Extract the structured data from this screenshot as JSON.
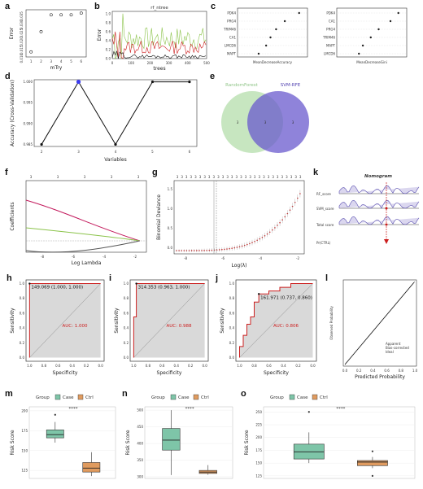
{
  "labels": {
    "a": "a",
    "b": "b",
    "c": "c",
    "d": "d",
    "e": "e",
    "f": "f",
    "g": "g",
    "k": "k",
    "h": "h",
    "i": "i",
    "j": "j",
    "l": "l",
    "m": "m",
    "n": "n",
    "o": "o"
  },
  "colors": {
    "red": "#cc1f1f",
    "blue": "#3b3bf0",
    "green": "#8bc34a",
    "venn_green": "#b9e0b0",
    "venn_blue": "#6a5acd",
    "case": "#7ec5a8",
    "ctrl": "#e09b5f",
    "roc_fill": "#d9d9d9"
  },
  "chart_data": [
    {
      "id": "a",
      "type": "scatter",
      "xlabel": "mTry",
      "ylabel": "Error",
      "x": [
        1,
        2,
        3,
        4,
        5,
        6
      ],
      "y": [
        0.012,
        0.024,
        0.034,
        0.034,
        0.034,
        0.035
      ],
      "xticks": [
        "1",
        "2",
        "3",
        "4",
        "5",
        "6"
      ],
      "yticks": [
        "0.010",
        "0.015",
        "0.020",
        "0.025",
        "0.030",
        "0.035"
      ]
    },
    {
      "id": "b",
      "type": "line",
      "title": "rf_ntree",
      "xlabel": "trees",
      "ylabel": "Error",
      "xticks": [
        "0",
        "100",
        "200",
        "300",
        "400",
        "500"
      ],
      "yticks": [
        "0.0",
        "0.2",
        "0.4",
        "0.6",
        "0.8",
        "1.0"
      ]
    },
    {
      "id": "c",
      "type": "scatter",
      "panels": [
        {
          "xlabel": "MeanDecreaseAccuracy",
          "categories": [
            "PDK4",
            "PRG4",
            "TRIM46",
            "CA1",
            "LMCD6",
            "MAPT"
          ],
          "values": [
            9.5,
            7.2,
            5.8,
            4.9,
            4.2,
            3.0
          ]
        },
        {
          "xlabel": "MeanDecreaseGini",
          "categories": [
            "PDK4",
            "CA1",
            "PRG4",
            "TRIM46",
            "MAPT",
            "LMCD6"
          ],
          "values": [
            1.5,
            1.3,
            1.0,
            0.8,
            0.6,
            0.5
          ]
        }
      ]
    },
    {
      "id": "d",
      "type": "line",
      "xlabel": "Variables",
      "ylabel": "Accuracy (Cross-Validation)",
      "x": [
        2,
        3,
        4,
        5,
        6
      ],
      "y": [
        0.985,
        1.0,
        0.985,
        1.0,
        1.0
      ],
      "xticks": [
        "2",
        "3",
        "4",
        "5",
        "6"
      ],
      "yticks": [
        "0.985",
        "0.990",
        "0.995",
        "1.000"
      ]
    },
    {
      "id": "e",
      "type": "venn",
      "sets": [
        "RandomForest",
        "SVM-RFE"
      ],
      "counts": [
        "3",
        "3",
        "3"
      ]
    },
    {
      "id": "f",
      "type": "line",
      "xlabel": "Log Lambda",
      "ylabel": "Coefficients",
      "top_ticks": [
        "3",
        "3",
        "3",
        "3",
        "3"
      ],
      "xticks": [
        "-8",
        "-6",
        "-4",
        "-2"
      ]
    },
    {
      "id": "g",
      "type": "scatter",
      "xlabel": "Log(λ)",
      "ylabel": "Binomial Deviance",
      "xticks": [
        "-8",
        "-6",
        "-4",
        "-2"
      ],
      "yticks": [
        "0.0",
        "0.5",
        "1.0",
        "1.5"
      ]
    },
    {
      "id": "k",
      "type": "other",
      "title": "Nomogram",
      "rows": [
        "RF_score",
        "SVM_score",
        "Total score",
        "Pr(CTRL)"
      ]
    },
    {
      "id": "h",
      "type": "line",
      "xlabel": "Specificity",
      "ylabel": "Sensitivity",
      "threshold": "149.069 (1.000, 1.000)",
      "auc": "AUC: 1.000",
      "x": [
        1.0,
        1.0,
        0.0
      ],
      "y": [
        0.0,
        1.0,
        1.0
      ],
      "xticks": [
        "1.0",
        "0.8",
        "0.6",
        "0.4",
        "0.2",
        "0.0"
      ],
      "yticks": [
        "0.0",
        "0.2",
        "0.4",
        "0.6",
        "0.8",
        "1.0"
      ]
    },
    {
      "id": "i",
      "type": "line",
      "xlabel": "Specificity",
      "ylabel": "Sensitivity",
      "threshold": "314.353 (0.963, 1.000)",
      "auc": "AUC: 0.988",
      "x": [
        1.0,
        1.0,
        0.963,
        0.963,
        0.0
      ],
      "y": [
        0.0,
        0.55,
        0.55,
        1.0,
        1.0
      ],
      "xticks": [
        "1.0",
        "0.8",
        "0.6",
        "0.4",
        "0.2",
        "0.0"
      ],
      "yticks": [
        "0.0",
        "0.2",
        "0.4",
        "0.6",
        "0.8",
        "1.0"
      ]
    },
    {
      "id": "j",
      "type": "line",
      "xlabel": "Specificity",
      "ylabel": "Sensitivity",
      "threshold": "161.971 (0.737, 0.860)",
      "auc": "AUC: 0.806",
      "x": [
        1.0,
        1.0,
        0.95,
        0.95,
        0.9,
        0.9,
        0.85,
        0.85,
        0.8,
        0.8,
        0.737,
        0.737,
        0.6,
        0.6,
        0.45,
        0.45,
        0.3,
        0.3,
        0.0
      ],
      "y": [
        0.0,
        0.15,
        0.15,
        0.3,
        0.3,
        0.45,
        0.45,
        0.55,
        0.55,
        0.75,
        0.75,
        0.86,
        0.86,
        0.9,
        0.9,
        0.95,
        0.95,
        1.0,
        1.0
      ],
      "xticks": [
        "1.0",
        "0.8",
        "0.6",
        "0.4",
        "0.2",
        "0.0"
      ],
      "yticks": [
        "0.0",
        "0.2",
        "0.4",
        "0.6",
        "0.8",
        "1.0"
      ]
    },
    {
      "id": "l",
      "type": "line",
      "xlabel": "Predicted Probability",
      "ylabel": "Observed Probability",
      "legend": [
        "Apparent",
        "Bias-corrected",
        "Ideal"
      ],
      "xticks": [
        "0.0",
        "0.2",
        "0.4",
        "0.6",
        "0.8",
        "1.0"
      ]
    },
    {
      "id": "m",
      "type": "box",
      "legend_title": "Group",
      "groups": [
        "Case",
        "Ctrl"
      ],
      "sig": "****",
      "ylabel": "Risk Score",
      "boxes": [
        {
          "min": 160,
          "q1": 166,
          "median": 170,
          "q3": 176,
          "max": 186,
          "outliers": [
            195
          ]
        },
        {
          "min": 118,
          "q1": 123,
          "median": 128,
          "q3": 135,
          "max": 148,
          "outliers": []
        }
      ],
      "ylim": [
        115,
        205
      ],
      "yticks": [
        125,
        150,
        175,
        200
      ]
    },
    {
      "id": "n",
      "type": "box",
      "legend_title": "Group",
      "groups": [
        "Case",
        "Ctrl"
      ],
      "sig": "****",
      "ylabel": "Risk Score",
      "boxes": [
        {
          "min": 305,
          "q1": 380,
          "median": 410,
          "q3": 445,
          "max": 500,
          "outliers": []
        },
        {
          "min": 306,
          "q1": 310,
          "median": 314,
          "q3": 319,
          "max": 335,
          "outliers": []
        }
      ],
      "ylim": [
        295,
        510
      ],
      "yticks": [
        300,
        350,
        400,
        450,
        500
      ]
    },
    {
      "id": "o",
      "type": "box",
      "legend_title": "Group",
      "groups": [
        "Case",
        "Ctrl"
      ],
      "sig": "****",
      "ylabel": "Risk Score",
      "boxes": [
        {
          "min": 150,
          "q1": 158,
          "median": 172,
          "q3": 187,
          "max": 210,
          "outliers": [
            250
          ]
        },
        {
          "min": 140,
          "q1": 145,
          "median": 152,
          "q3": 155,
          "max": 162,
          "outliers": [
            173,
            125
          ]
        }
      ],
      "ylim": [
        120,
        260
      ],
      "yticks": [
        125,
        150,
        175,
        200,
        225,
        250
      ]
    }
  ]
}
